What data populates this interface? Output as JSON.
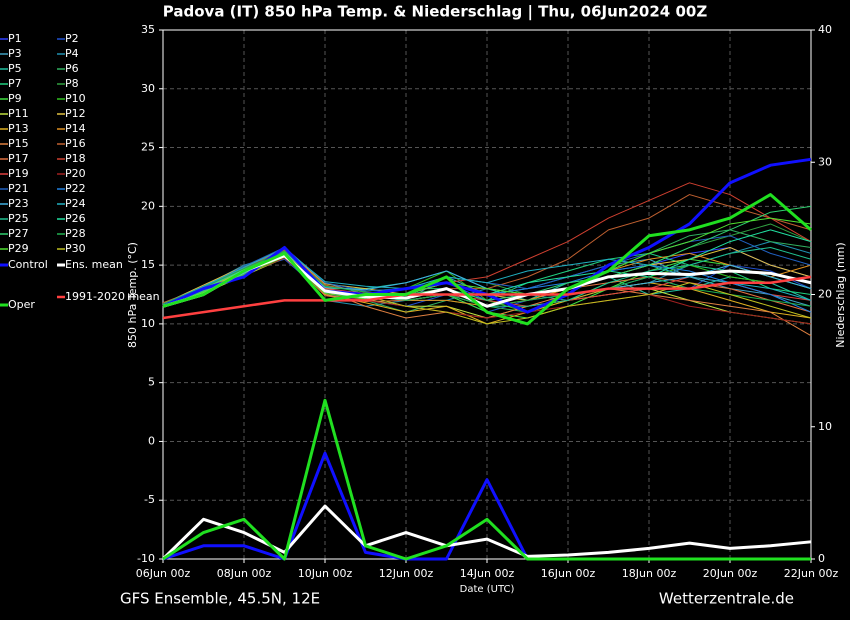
{
  "chart_data": {
    "type": "line",
    "title": "Padova  (IT)  850 hPa Temp. & Niederschlag | Thu, 06Jun2024 00Z",
    "ylabel": "850 hPa Temp. (°C)",
    "y2label": "Niederschlag (mm)",
    "xlabel": "Date (UTC)",
    "footer_left": "GFS Ensemble, 45.5N, 12E",
    "footer_right": "Wetterzentrale.de",
    "x": [
      0,
      1,
      2,
      3,
      4,
      5,
      6,
      7,
      8,
      9,
      10,
      11,
      12,
      13,
      14,
      15,
      16
    ],
    "xlim": [
      0,
      16
    ],
    "xticks": [
      {
        "value": 0,
        "label": "06Jun 00z"
      },
      {
        "value": 2,
        "label": "08Jun 00z"
      },
      {
        "value": 4,
        "label": "10Jun 00z"
      },
      {
        "value": 6,
        "label": "12Jun 00z"
      },
      {
        "value": 8,
        "label": "14Jun 00z"
      },
      {
        "value": 10,
        "label": "16Jun 00z"
      },
      {
        "value": 12,
        "label": "18Jun 00z"
      },
      {
        "value": 14,
        "label": "20Jun 00z"
      },
      {
        "value": 16,
        "label": "22Jun 00z"
      }
    ],
    "ylim": [
      -10,
      35
    ],
    "yticks": [
      -10,
      -5,
      0,
      5,
      10,
      15,
      20,
      25,
      30,
      35
    ],
    "y2lim": [
      0,
      40
    ],
    "y2ticks": [
      0,
      10,
      20,
      30,
      40
    ],
    "grid": true,
    "series": [
      {
        "name": "P1",
        "color": "#3040ff",
        "values": [
          11.5,
          12.8,
          14,
          16,
          13,
          12,
          12.5,
          13.5,
          12,
          12.5,
          13,
          14.5,
          15,
          16,
          16.5,
          15,
          14
        ]
      },
      {
        "name": "P2",
        "color": "#2050d0",
        "values": [
          11.5,
          13,
          14.5,
          15.5,
          12.5,
          12,
          11.5,
          12.5,
          11,
          12,
          12.5,
          13,
          14,
          13,
          15,
          14.5,
          13
        ]
      },
      {
        "name": "P3",
        "color": "#40a0c0",
        "values": [
          11.8,
          12.5,
          14.8,
          16.5,
          13.5,
          12.5,
          12,
          14,
          12.5,
          13,
          14,
          15,
          15.5,
          14,
          13,
          12.5,
          11.5
        ]
      },
      {
        "name": "P4",
        "color": "#2090b0",
        "values": [
          11.5,
          13.2,
          15,
          16,
          12,
          11.5,
          12,
          12,
          13,
          12.5,
          12,
          13,
          13.5,
          15,
          16,
          17,
          16
        ]
      },
      {
        "name": "P5",
        "color": "#20c0a0",
        "values": [
          11.6,
          12.6,
          14.2,
          15.8,
          13,
          13,
          13.5,
          14.5,
          13,
          12,
          13.5,
          14,
          12.5,
          13,
          14,
          13.5,
          12
        ]
      },
      {
        "name": "P6",
        "color": "#30b060",
        "values": [
          11.4,
          12.9,
          14.6,
          16.2,
          12.8,
          12,
          11,
          12,
          11.5,
          11,
          12.5,
          14.5,
          16,
          17.5,
          18,
          17,
          16.5
        ]
      },
      {
        "name": "P7",
        "color": "#20d080",
        "values": [
          11.7,
          13.1,
          14.4,
          15.7,
          13.2,
          12.8,
          13,
          13,
          12,
          13.5,
          14.5,
          15.5,
          16,
          15,
          14.5,
          13,
          12.5
        ]
      },
      {
        "name": "P8",
        "color": "#30a040",
        "values": [
          11.5,
          12.7,
          14.3,
          16.3,
          12.6,
          12.2,
          12.5,
          14,
          13.5,
          12.5,
          13,
          14,
          15,
          16.5,
          17.5,
          18.5,
          17
        ]
      },
      {
        "name": "P9",
        "color": "#40e040",
        "values": [
          11.6,
          13,
          14.7,
          16,
          12.9,
          12.4,
          12,
          12.5,
          11,
          10.5,
          11.5,
          13,
          14.5,
          15.5,
          15,
          14,
          13
        ]
      },
      {
        "name": "P10",
        "color": "#30c020",
        "values": [
          11.5,
          12.8,
          14.5,
          15.9,
          12.7,
          12.6,
          13,
          14.5,
          12,
          11,
          12,
          13.5,
          14,
          15,
          14,
          13.5,
          14
        ]
      },
      {
        "name": "P11",
        "color": "#c0e040",
        "values": [
          11.4,
          12.6,
          14.1,
          15.6,
          13.1,
          12.1,
          11.5,
          11.5,
          10.5,
          11.5,
          12,
          12.5,
          13,
          12,
          11,
          10.5,
          10
        ]
      },
      {
        "name": "P12",
        "color": "#e0c040",
        "values": [
          11.7,
          13.3,
          14.9,
          16.4,
          13.4,
          13,
          12.5,
          13.5,
          12.5,
          12,
          13,
          14,
          15,
          15.5,
          16.5,
          15,
          14
        ]
      },
      {
        "name": "P13",
        "color": "#e0b020",
        "values": [
          11.5,
          12.9,
          14.6,
          15.8,
          12.5,
          11.8,
          11,
          11.5,
          10,
          11,
          12,
          13,
          13.5,
          13,
          12,
          11,
          10.5
        ]
      },
      {
        "name": "P14",
        "color": "#e09020",
        "values": [
          11.6,
          13,
          14.4,
          16.1,
          13,
          12.5,
          12,
          12,
          11.5,
          12,
          13,
          14.5,
          15.5,
          16,
          15,
          14,
          15
        ]
      },
      {
        "name": "P15",
        "color": "#e08040",
        "values": [
          11.5,
          12.7,
          14.3,
          15.7,
          12.8,
          11.5,
          10.5,
          11,
          10.5,
          11.5,
          12.5,
          13,
          12.5,
          12,
          11.5,
          11,
          9
        ]
      },
      {
        "name": "P16",
        "color": "#c06030",
        "values": [
          11.8,
          13.1,
          14.8,
          16.3,
          13.3,
          12.7,
          12.5,
          13,
          13,
          14,
          15.5,
          18,
          19,
          21,
          20,
          19,
          18
        ]
      },
      {
        "name": "P17",
        "color": "#e07040",
        "values": [
          11.4,
          12.8,
          14.5,
          15.9,
          12.4,
          11.9,
          12,
          12.5,
          11.5,
          12.5,
          13,
          13.5,
          14,
          13.5,
          13,
          12,
          11
        ]
      },
      {
        "name": "P18",
        "color": "#d04030",
        "values": [
          11.6,
          12.9,
          14.6,
          16,
          12.9,
          12.3,
          12.5,
          13.5,
          14,
          15.5,
          17,
          19,
          20.5,
          22,
          21,
          19,
          17
        ]
      },
      {
        "name": "P19",
        "color": "#e04040",
        "values": [
          11.5,
          13,
          14.7,
          16.2,
          13,
          12.6,
          12,
          12.5,
          12,
          11.5,
          12,
          12.5,
          13,
          14,
          13.5,
          12.5,
          12
        ]
      },
      {
        "name": "P20",
        "color": "#a02020",
        "values": [
          11.7,
          12.6,
          14.2,
          15.6,
          12.6,
          12,
          11.5,
          11,
          10.5,
          11,
          11.5,
          12,
          12.5,
          11.5,
          11,
          10.5,
          10
        ]
      },
      {
        "name": "P21",
        "color": "#2060c0",
        "values": [
          11.5,
          13.1,
          14.9,
          16.5,
          13.5,
          12.8,
          13,
          14,
          13.5,
          13,
          14,
          15,
          16,
          17,
          17.5,
          16,
          15
        ]
      },
      {
        "name": "P22",
        "color": "#2080e0",
        "values": [
          11.6,
          12.8,
          14.4,
          15.8,
          12.7,
          12.2,
          12.5,
          13.5,
          12.5,
          13,
          13.5,
          14.5,
          15,
          14.5,
          13.5,
          12.5,
          11
        ]
      },
      {
        "name": "P23",
        "color": "#40b0e0",
        "values": [
          11.4,
          12.7,
          14.3,
          16.1,
          13.1,
          12.9,
          13.5,
          14.5,
          13,
          12.5,
          12.5,
          13,
          13.5,
          14,
          15,
          14,
          13
        ]
      },
      {
        "name": "P24",
        "color": "#20b0c0",
        "values": [
          11.7,
          13.2,
          14.8,
          16.4,
          13.6,
          13.2,
          13,
          14,
          13.5,
          14.5,
          15,
          15.5,
          15,
          14,
          13.5,
          13,
          12
        ]
      },
      {
        "name": "P25",
        "color": "#20c090",
        "values": [
          11.5,
          12.9,
          14.5,
          15.9,
          12.8,
          12.4,
          12,
          12.5,
          11.5,
          11.5,
          12,
          13.5,
          14.5,
          15,
          16,
          16.5,
          15.5
        ]
      },
      {
        "name": "P26",
        "color": "#20e0a0",
        "values": [
          11.6,
          13,
          14.6,
          16,
          12.9,
          12.5,
          13,
          13.5,
          12.5,
          13.5,
          14,
          14.5,
          14,
          15.5,
          17,
          18,
          17
        ]
      },
      {
        "name": "P27",
        "color": "#30d070",
        "values": [
          11.5,
          12.8,
          14.4,
          15.8,
          12.7,
          12.3,
          12.5,
          13,
          12,
          12.5,
          13.5,
          14,
          15,
          16.5,
          18,
          19.5,
          20
        ]
      },
      {
        "name": "P28",
        "color": "#20b050",
        "values": [
          11.7,
          13.1,
          14.7,
          16.2,
          13.2,
          12.7,
          12,
          12.5,
          11.5,
          12,
          12.5,
          13,
          14,
          13,
          12.5,
          12,
          11.5
        ]
      },
      {
        "name": "P29",
        "color": "#50e030",
        "values": [
          11.4,
          12.7,
          14.2,
          15.7,
          12.6,
          12.1,
          12.5,
          13.5,
          13,
          12.5,
          13,
          14.5,
          16,
          17,
          18.5,
          19,
          18.5
        ]
      },
      {
        "name": "P30",
        "color": "#c0c020",
        "values": [
          11.6,
          12.9,
          14.5,
          16,
          12.9,
          12.4,
          11.5,
          11,
          10,
          10.5,
          11.5,
          12,
          12.5,
          13.5,
          12.5,
          11.5,
          10.5
        ]
      },
      {
        "name": "Control",
        "color": "#1010ff",
        "line_width": 3,
        "values": [
          11.5,
          13,
          14,
          16.5,
          12.8,
          12.5,
          13,
          13.5,
          12.5,
          11,
          12.5,
          15,
          16.5,
          18.5,
          22,
          23.5,
          24
        ],
        "precip": [
          0,
          1,
          1,
          0,
          8,
          0.5,
          0,
          0,
          6,
          0,
          0,
          0,
          0,
          0,
          0,
          0,
          0
        ]
      },
      {
        "name": "Ens. mean",
        "color": "#ffffff",
        "line_width": 3,
        "values": [
          11.5,
          12.5,
          14.5,
          15.8,
          12.8,
          12.3,
          12.2,
          13,
          11.5,
          12.5,
          13,
          14,
          14.3,
          14.2,
          14.5,
          14.3,
          13.5
        ],
        "precip": [
          0,
          3,
          2,
          0.5,
          4,
          1,
          2,
          1,
          1.5,
          0.2,
          0.3,
          0.5,
          0.8,
          1.2,
          0.8,
          1,
          1.3
        ]
      },
      {
        "name": "1991-2020 mean",
        "color": "#ff4040",
        "line_width": 2.5,
        "values": [
          10.5,
          11,
          11.5,
          12,
          12,
          12,
          12.5,
          12.5,
          12.5,
          12.5,
          12.5,
          13,
          13,
          13,
          13.5,
          13.5,
          14
        ]
      },
      {
        "name": "Oper",
        "color": "#20e020",
        "line_width": 3,
        "values": [
          11.5,
          12.5,
          14.5,
          16,
          12,
          12.5,
          12.5,
          14,
          11,
          10,
          13,
          14.5,
          17.5,
          18,
          19,
          21,
          18
        ],
        "precip": [
          0,
          2,
          3,
          0,
          12,
          1,
          0,
          1,
          3,
          0,
          0,
          0,
          0,
          0,
          0,
          0,
          0
        ]
      }
    ]
  }
}
